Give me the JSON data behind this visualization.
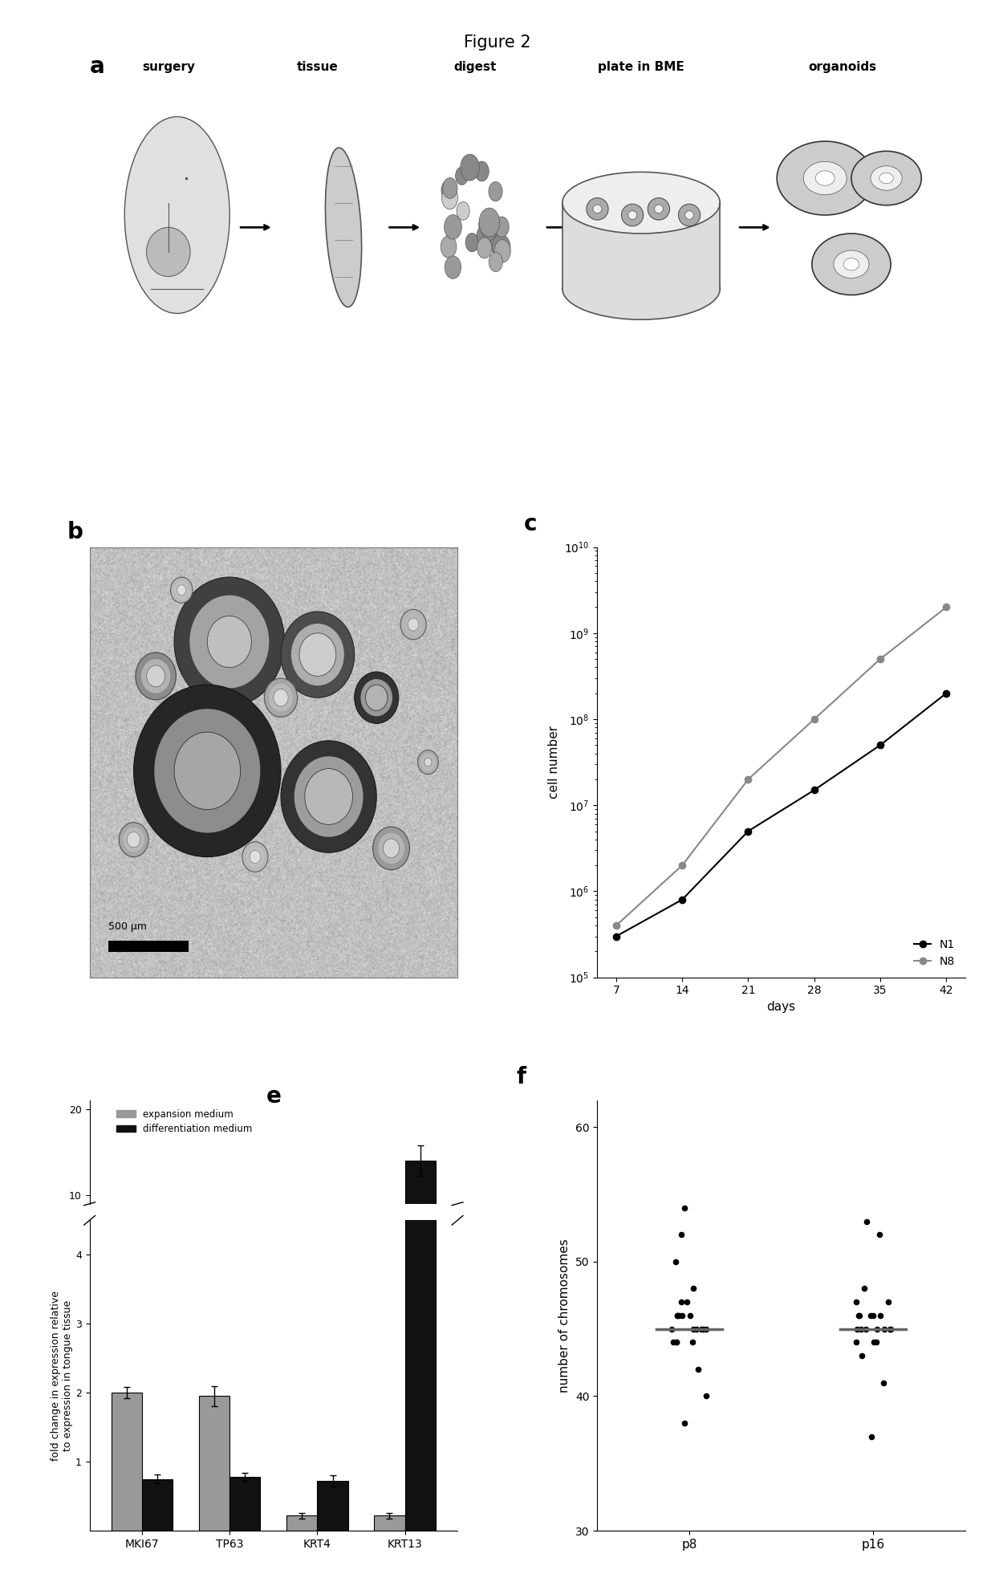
{
  "title": "Figure 2",
  "panel_c": {
    "ylabel": "cell number",
    "xlabel": "days",
    "xticks": [
      7,
      14,
      21,
      28,
      35,
      42
    ],
    "N1_x": [
      7,
      14,
      21,
      28,
      35,
      42
    ],
    "N1_y": [
      300000.0,
      800000.0,
      5000000.0,
      15000000.0,
      50000000.0,
      200000000.0
    ],
    "N8_x": [
      7,
      14,
      21,
      28,
      35,
      42
    ],
    "N8_y": [
      400000.0,
      2000000.0,
      20000000.0,
      100000000.0,
      500000000.0,
      2000000000.0
    ],
    "N1_color": "#000000",
    "N8_color": "#888888",
    "legend_N1": "N1",
    "legend_N8": "N8"
  },
  "panel_e": {
    "categories": [
      "MKI67",
      "TP63",
      "KRT4",
      "KRT13"
    ],
    "expansion_values": [
      2.0,
      1.95,
      0.22,
      0.22
    ],
    "differentiation_values": [
      0.75,
      0.78,
      0.72,
      14.0
    ],
    "expansion_color": "#999999",
    "differentiation_color": "#111111",
    "ylabel": "fold change in expression relative\nto expression in tongue tissue",
    "expansion_label": "expansion medium",
    "differentiation_label": "differentiation medium",
    "expansion_errors": [
      0.08,
      0.15,
      0.04,
      0.04
    ],
    "differentiation_errors": [
      0.06,
      0.06,
      0.08,
      1.8
    ]
  },
  "panel_f": {
    "ylabel": "number of chromosomes",
    "xlabel_ticks": [
      "p8",
      "p16"
    ],
    "ylim": [
      30,
      62
    ],
    "yticks": [
      30,
      40,
      50,
      60
    ],
    "p8_data": [
      38,
      40,
      42,
      44,
      44,
      44,
      44,
      45,
      45,
      45,
      45,
      45,
      45,
      46,
      46,
      46,
      46,
      46,
      47,
      47,
      48,
      50,
      52,
      54
    ],
    "p16_data": [
      37,
      41,
      43,
      44,
      44,
      44,
      45,
      45,
      45,
      45,
      45,
      45,
      45,
      46,
      46,
      46,
      46,
      46,
      47,
      47,
      48,
      52,
      53
    ],
    "dot_color": "#000000",
    "median_color": "#666666"
  },
  "bg_color": "#ffffff"
}
